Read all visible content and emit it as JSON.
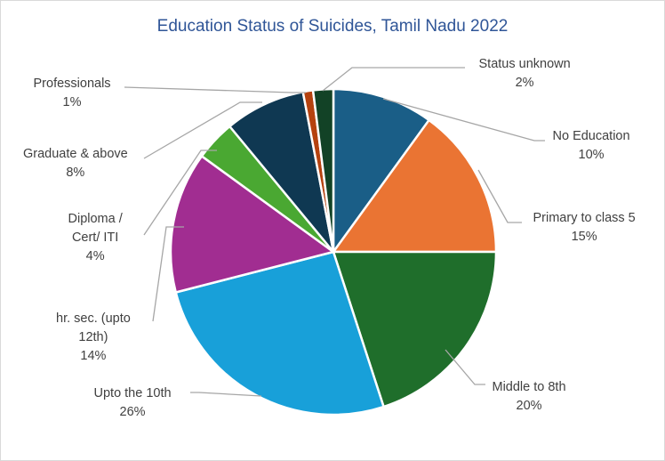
{
  "chart_data": {
    "type": "pie",
    "title": "Education Status of Suicides, Tamil Nadu 2022",
    "slices": [
      {
        "label_lines": [
          "No Education"
        ],
        "value": 10,
        "value_text": "10%",
        "color": "#1a5e87"
      },
      {
        "label_lines": [
          "Primary to class 5"
        ],
        "value": 15,
        "value_text": "15%",
        "color": "#ea7433"
      },
      {
        "label_lines": [
          "Middle to 8th"
        ],
        "value": 20,
        "value_text": "20%",
        "color": "#1f6e2b"
      },
      {
        "label_lines": [
          "Upto the 10th"
        ],
        "value": 26,
        "value_text": "26%",
        "color": "#18a0d9"
      },
      {
        "label_lines": [
          "hr. sec. (upto",
          "12th)"
        ],
        "value": 14,
        "value_text": "14%",
        "color": "#a12d91"
      },
      {
        "label_lines": [
          "Diploma /",
          "Cert/ ITI"
        ],
        "value": 4,
        "value_text": "4%",
        "color": "#4aa832"
      },
      {
        "label_lines": [
          "Graduate & above"
        ],
        "value": 8,
        "value_text": "8%",
        "color": "#0f3852"
      },
      {
        "label_lines": [
          "Professionals"
        ],
        "value": 1,
        "value_text": "1%",
        "color": "#b5420f"
      },
      {
        "label_lines": [
          "Status unknown"
        ],
        "value": 2,
        "value_text": "2%",
        "color": "#124226"
      }
    ],
    "legend": "none",
    "data_labels": "outside-with-leader-lines"
  }
}
